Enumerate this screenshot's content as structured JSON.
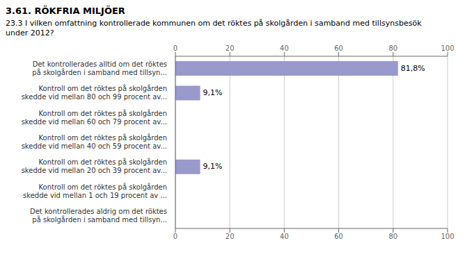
{
  "chart_data": {
    "type": "bar",
    "orientation": "horizontal",
    "title": "3.61. RÖKFRIA MILJÖER",
    "subtitle": "23.3 I vilken omfattning kontrollerade kommunen om det röktes på skolgården i samband med tillsynsbesök\nunder 2012?",
    "categories": [
      "Det kontrollerades alltid om det röktes\npå skolgården i samband med tillsyn...",
      "Kontroll om det röktes på skolgården\nskedde vid mellan 80 och 99 procent av...",
      "Kontroll om det röktes på skolgården\nskedde vid mellan 60 och 79 procent av...",
      "Kontroll om det röktes på skolgården\nskedde vid mellan 40 och 59 procent av...",
      "Kontroll om det röktes på skolgården\nskedde vid mellan 20 och 39 procent av...",
      "Kontroll om det röktes på skolgården\nskedde vid mellan 1 och 19 procent av ...",
      "Det kontrollerades aldrig om det röktes\npå skolgården i samband med tillsyn..."
    ],
    "values": [
      81.8,
      9.1,
      0.0,
      0.0,
      9.1,
      0.0,
      0.0
    ],
    "value_labels": [
      "81,8%",
      "9,1%",
      null,
      null,
      "9,1%",
      null,
      null
    ],
    "color": "#9999cc",
    "xlim": [
      0,
      100
    ],
    "xticks": [
      0,
      20,
      40,
      60,
      80,
      100
    ],
    "grid": true
  }
}
